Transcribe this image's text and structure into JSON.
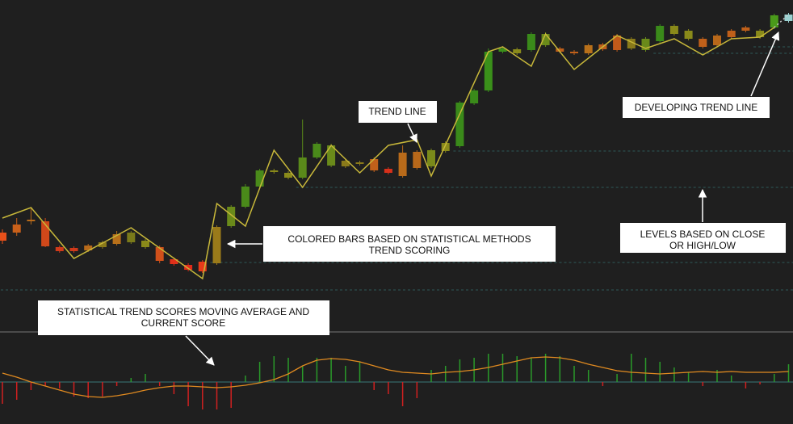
{
  "chart_data": {
    "type": "candlestick",
    "open": [
      122,
      132,
      138,
      136,
      104,
      103,
      106,
      104,
      120,
      110,
      112,
      104,
      89,
      82,
      86,
      84,
      130,
      154,
      179,
      197,
      196,
      190,
      215,
      205,
      211,
      209,
      213,
      201,
      221,
      222,
      204,
      223,
      229,
      282,
      298,
      346,
      349,
      348,
      354,
      350,
      346,
      354,
      355,
      366,
      362,
      348,
      359,
      368,
      372,
      362,
      366,
      372,
      376,
      364,
      376,
      384
    ],
    "close": [
      112,
      122,
      136,
      105,
      99,
      99,
      100,
      110,
      108,
      122,
      104,
      87,
      83,
      76,
      74,
      129,
      154,
      179,
      199,
      199,
      190,
      215,
      232,
      230,
      204,
      207,
      199,
      196,
      192,
      202,
      224,
      233,
      283,
      298,
      346,
      350,
      344,
      368,
      368,
      346,
      344,
      344,
      349,
      348,
      350,
      362,
      378,
      378,
      362,
      352,
      354,
      364,
      372,
      372,
      391,
      392
    ],
    "high": [
      126,
      140,
      152,
      140,
      106,
      105,
      108,
      112,
      124,
      124,
      114,
      106,
      91,
      84,
      88,
      131,
      156,
      182,
      201,
      201,
      198,
      262,
      234,
      232,
      213,
      211,
      215,
      203,
      230,
      224,
      226,
      235,
      285,
      300,
      350,
      352,
      351,
      370,
      370,
      352,
      348,
      356,
      357,
      368,
      364,
      364,
      380,
      380,
      374,
      364,
      368,
      374,
      378,
      374,
      393,
      394
    ],
    "low": [
      108,
      118,
      132,
      104,
      97,
      97,
      98,
      102,
      106,
      108,
      102,
      84,
      81,
      74,
      72,
      82,
      128,
      152,
      177,
      195,
      188,
      188,
      213,
      203,
      202,
      205,
      197,
      194,
      190,
      200,
      202,
      221,
      227,
      280,
      296,
      344,
      342,
      346,
      352,
      344,
      342,
      342,
      347,
      346,
      348,
      346,
      357,
      366,
      360,
      350,
      352,
      362,
      370,
      362,
      374,
      382
    ],
    "colors": [
      "#e8501a",
      "#c9601a",
      "#b86a1a",
      "#d0481a",
      "#d03a1a",
      "#d03a1a",
      "#b86a1a",
      "#8a7a1a",
      "#b8701a",
      "#7a7a1a",
      "#8a8a1a",
      "#d0501a",
      "#e0301a",
      "#e02a1a",
      "#e83a1a",
      "#9a7a1a",
      "#6a8a1a",
      "#4a8a1a",
      "#4a8a1a",
      "#8a8a1a",
      "#8a8a1a",
      "#5a8a1a",
      "#4a8a1a",
      "#6a8a1a",
      "#8a7a1a",
      "#8a7a1a",
      "#c0601a",
      "#d8301a",
      "#b86a1a",
      "#b8681a",
      "#7a8a1a",
      "#8a8a1a",
      "#3a8a1a",
      "#3a8a1a",
      "#3a901a",
      "#3a901a",
      "#8a8a1a",
      "#3a8a1a",
      "#6a8a1a",
      "#c0601a",
      "#c0601a",
      "#b8701a",
      "#c0601a",
      "#c05a1a",
      "#8a7a1a",
      "#6a8a1a",
      "#3a8a1a",
      "#8a8a1a",
      "#8a8a1a",
      "#c0601a",
      "#b8681a",
      "#c0601a",
      "#c0601a",
      "#8a8a1a",
      "#4a9a1a",
      "#9ad0d0"
    ],
    "ylim": [
      0,
      410
    ],
    "trend_line": {
      "color": "#c8b83a",
      "x": [
        0,
        2,
        5,
        9,
        14,
        15,
        17,
        19,
        21,
        23,
        25,
        27,
        29,
        30,
        34,
        35,
        37,
        38,
        40,
        43,
        45,
        47,
        49,
        51,
        53,
        54
      ],
      "values": [
        140,
        153,
        90,
        128,
        65,
        158,
        130,
        224,
        178,
        230,
        196,
        230,
        237,
        192,
        346,
        352,
        328,
        368,
        324,
        366,
        350,
        362,
        342,
        362,
        364,
        376
      ]
    },
    "developing_line": {
      "color": "#cccccc",
      "x": [
        54,
        55
      ],
      "values": [
        376,
        392
      ]
    },
    "levels": [
      {
        "value": 223,
        "from": 32
      },
      {
        "value": 178,
        "from": 21
      },
      {
        "value": 85,
        "from": 15
      },
      {
        "value": 51,
        "from": 0
      },
      {
        "value": 344,
        "from": 46
      },
      {
        "value": 352,
        "from": 53
      }
    ],
    "level_color": "#2e5a58",
    "score": {
      "ylim": [
        -52,
        61
      ],
      "values": [
        -27,
        -22,
        -10,
        -5,
        -8,
        -18,
        -20,
        -18,
        -5,
        5,
        10,
        -5,
        -15,
        -30,
        -34,
        -34,
        -32,
        8,
        25,
        32,
        30,
        20,
        30,
        30,
        20,
        25,
        -10,
        -15,
        -30,
        -20,
        15,
        20,
        28,
        30,
        35,
        35,
        32,
        30,
        35,
        32,
        20,
        15,
        -5,
        10,
        35,
        30,
        25,
        18,
        12,
        -5,
        15,
        8,
        -8,
        -3,
        10,
        22
      ],
      "average": [
        11,
        6,
        0,
        -5,
        -10,
        -15,
        -18,
        -19,
        -17,
        -14,
        -10,
        -7,
        -5,
        -5,
        -6,
        -7,
        -6,
        -4,
        -1,
        3,
        10,
        20,
        27,
        29,
        28,
        25,
        20,
        15,
        12,
        11,
        10,
        12,
        13,
        15,
        18,
        22,
        26,
        30,
        31,
        30,
        27,
        22,
        18,
        14,
        12,
        11,
        10,
        11,
        12,
        13,
        12,
        13,
        12,
        12,
        12,
        13
      ],
      "up_color": "#2a9a2a",
      "down_color": "#d02020",
      "average_color": "#e08a20"
    },
    "annotations": {
      "trend_line": [
        "TREND LINE"
      ],
      "developing": [
        "DEVELOPING TREND LINE"
      ],
      "colored_bars": [
        "COLORED BARS BASED ON STATISTICAL METHODS",
        "TREND SCORING"
      ],
      "levels": [
        "LEVELS BASED ON CLOSE",
        "OR HIGH/LOW"
      ],
      "scores": [
        "STATISTICAL TREND SCORES MOVING AVERAGE AND",
        "CURRENT SCORE"
      ]
    }
  }
}
